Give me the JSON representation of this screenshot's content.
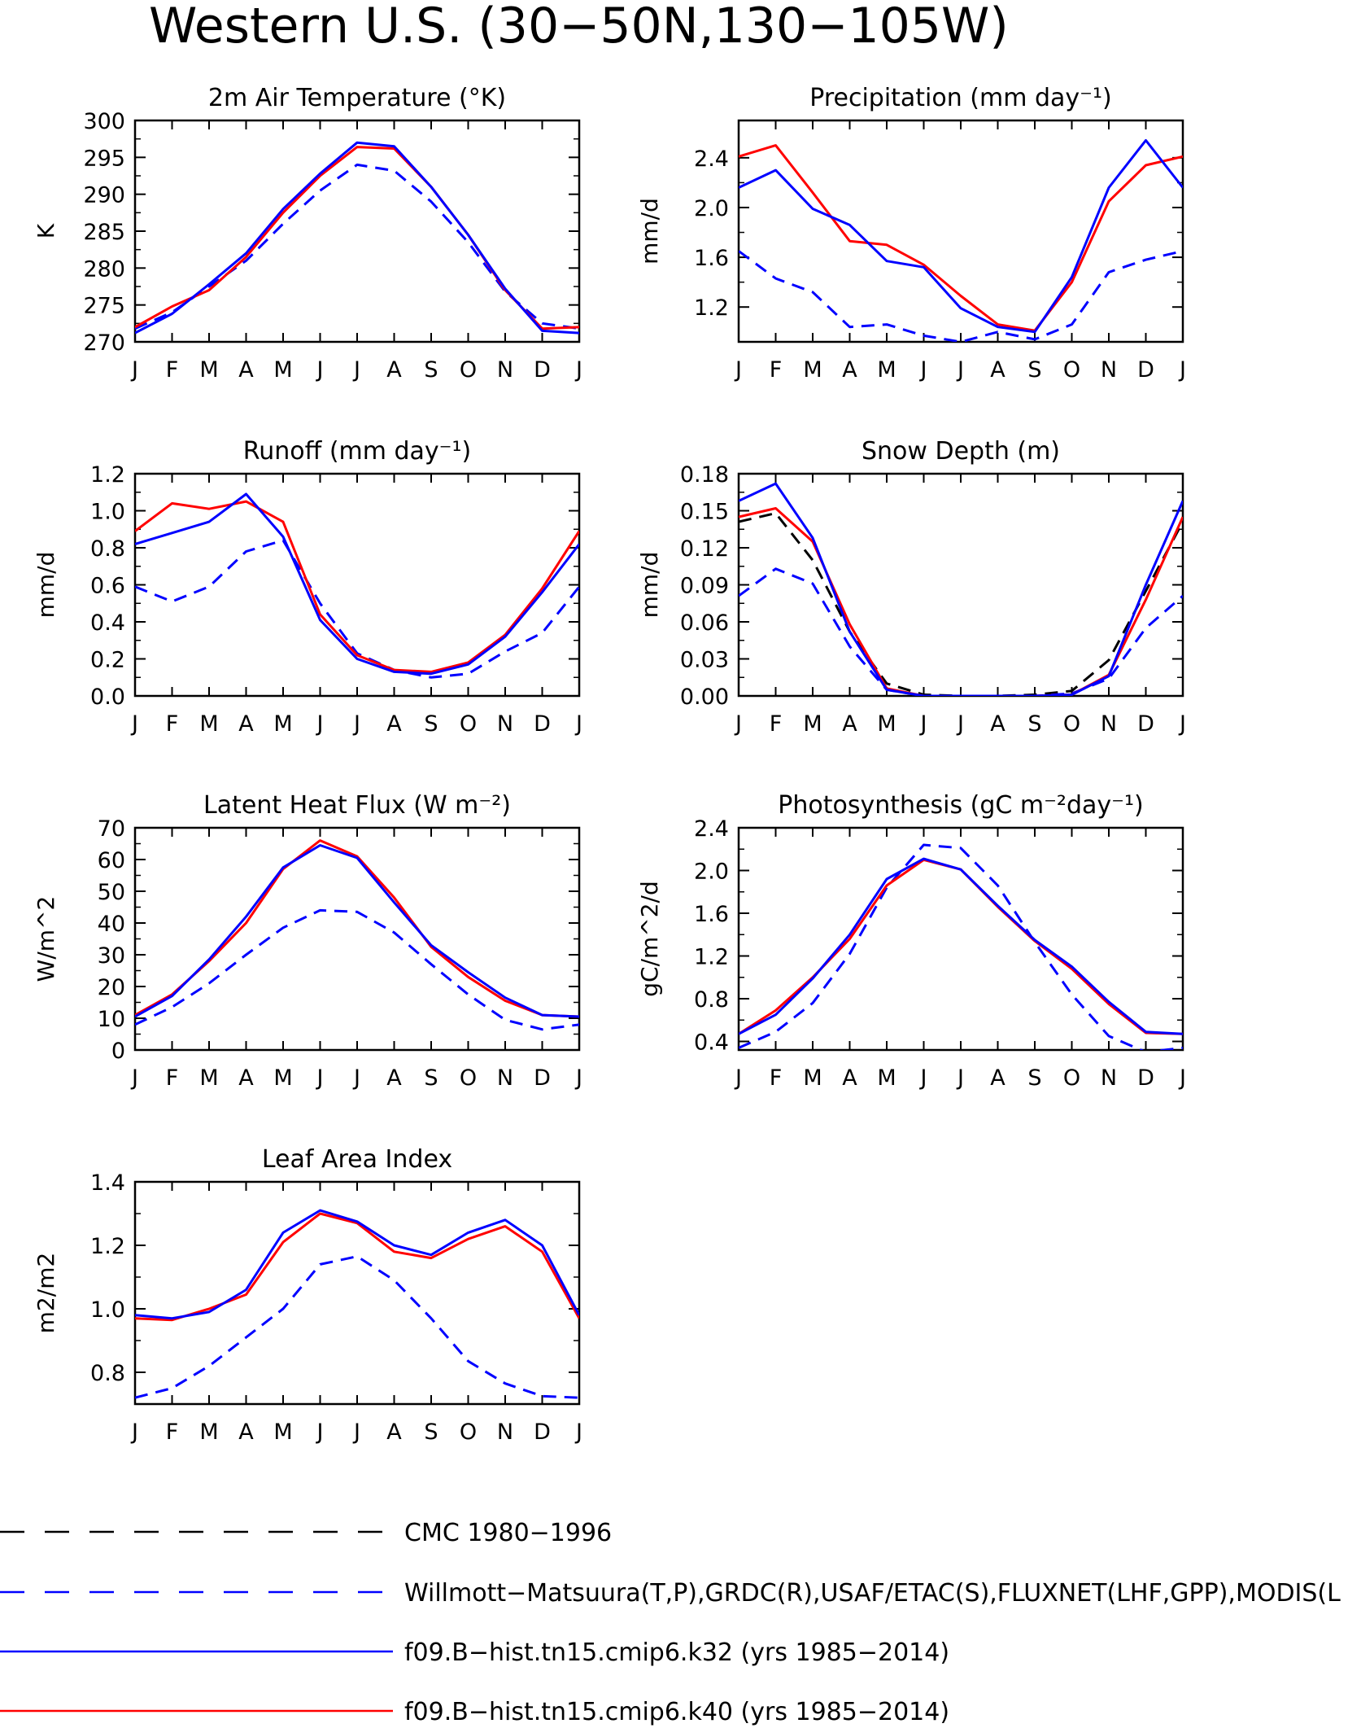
{
  "figure": {
    "title": "Western U.S. (30−50N,130−105W)"
  },
  "colors": {
    "cmc": "#000000",
    "obs": "#0000ff",
    "k32": "#0000ff",
    "k40": "#ff0000"
  },
  "legend": [
    {
      "id": "cmc",
      "label": "CMC 1980−1996",
      "color": "#000000",
      "dashed": true
    },
    {
      "id": "obs",
      "label": "Willmott−Matsuura(T,P),GRDC(R),USAF/ETAC(S),FLUXNET(LHF,GPP),MODIS(L",
      "color": "#0000ff",
      "dashed": true
    },
    {
      "id": "k32",
      "label": "f09.B−hist.tn15.cmip6.k32 (yrs 1985−2014)",
      "color": "#0000ff",
      "dashed": false
    },
    {
      "id": "k40",
      "label": "f09.B−hist.tn15.cmip6.k40 (yrs 1985−2014)",
      "color": "#ff0000",
      "dashed": false
    }
  ],
  "chart_data": [
    {
      "id": "tsa",
      "type": "line",
      "title": "2m Air Temperature (°K)",
      "xlabel": "",
      "ylabel": "K",
      "categories": [
        "J",
        "F",
        "M",
        "A",
        "M",
        "J",
        "J",
        "A",
        "S",
        "O",
        "N",
        "D",
        "J"
      ],
      "ylim": [
        270,
        300
      ],
      "yticks": [
        270,
        275,
        280,
        285,
        290,
        295,
        300
      ],
      "yticklabels": [
        "270",
        "275",
        "280",
        "285",
        "290",
        "295",
        "300"
      ],
      "series": [
        {
          "ref": "obs",
          "values": [
            271.8,
            274.0,
            277.5,
            281.0,
            286.0,
            290.5,
            294.0,
            293.2,
            289.0,
            283.5,
            276.8,
            272.5,
            271.8
          ]
        },
        {
          "ref": "k40",
          "values": [
            272.0,
            274.8,
            277.0,
            281.5,
            287.5,
            292.5,
            296.4,
            296.2,
            291.0,
            284.5,
            277.0,
            271.8,
            272.0
          ]
        },
        {
          "ref": "k32",
          "values": [
            271.2,
            273.8,
            277.8,
            282.0,
            288.0,
            292.8,
            297.0,
            296.5,
            291.0,
            284.5,
            277.2,
            271.5,
            271.2
          ]
        }
      ]
    },
    {
      "id": "prec",
      "type": "line",
      "title": "Precipitation (mm day⁻¹)",
      "xlabel": "",
      "ylabel": "mm/d",
      "categories": [
        "J",
        "F",
        "M",
        "A",
        "M",
        "J",
        "J",
        "A",
        "S",
        "O",
        "N",
        "D",
        "J"
      ],
      "ylim": [
        0.92,
        2.7
      ],
      "yticks": [
        1.2,
        1.6,
        2.0,
        2.4
      ],
      "yticklabels": [
        "1.2",
        "1.6",
        "2.0",
        "2.4"
      ],
      "series": [
        {
          "ref": "obs",
          "values": [
            1.65,
            1.43,
            1.32,
            1.04,
            1.06,
            0.97,
            0.92,
            1.0,
            0.94,
            1.06,
            1.48,
            1.58,
            1.65
          ]
        },
        {
          "ref": "k40",
          "values": [
            2.41,
            2.5,
            2.12,
            1.73,
            1.7,
            1.54,
            1.29,
            1.06,
            1.01,
            1.4,
            2.05,
            2.34,
            2.41
          ]
        },
        {
          "ref": "k32",
          "values": [
            2.16,
            2.3,
            1.99,
            1.86,
            1.57,
            1.52,
            1.19,
            1.04,
            1.0,
            1.44,
            2.16,
            2.54,
            2.16
          ]
        }
      ]
    },
    {
      "id": "runoff",
      "type": "line",
      "title": "Runoff (mm day⁻¹)",
      "xlabel": "",
      "ylabel": "mm/d",
      "categories": [
        "J",
        "F",
        "M",
        "A",
        "M",
        "J",
        "J",
        "A",
        "S",
        "O",
        "N",
        "D",
        "J"
      ],
      "ylim": [
        0,
        1.2
      ],
      "yticks": [
        0,
        0.2,
        0.4,
        0.6,
        0.8,
        1.0,
        1.2
      ],
      "yticklabels": [
        "0.0",
        "0.2",
        "0.4",
        "0.6",
        "0.8",
        "1.0",
        "1.2"
      ],
      "series": [
        {
          "ref": "obs",
          "values": [
            0.59,
            0.51,
            0.59,
            0.78,
            0.84,
            0.5,
            0.23,
            0.14,
            0.1,
            0.12,
            0.24,
            0.34,
            0.59
          ]
        },
        {
          "ref": "k40",
          "values": [
            0.89,
            1.04,
            1.01,
            1.05,
            0.94,
            0.44,
            0.22,
            0.14,
            0.13,
            0.18,
            0.33,
            0.58,
            0.89
          ]
        },
        {
          "ref": "k32",
          "values": [
            0.82,
            0.88,
            0.94,
            1.09,
            0.86,
            0.41,
            0.2,
            0.13,
            0.12,
            0.17,
            0.32,
            0.56,
            0.82
          ]
        }
      ]
    },
    {
      "id": "snowdp",
      "type": "line",
      "title": "Snow Depth (m)",
      "xlabel": "",
      "ylabel": "mm/d",
      "categories": [
        "J",
        "F",
        "M",
        "A",
        "M",
        "J",
        "J",
        "A",
        "S",
        "O",
        "N",
        "D",
        "J"
      ],
      "ylim": [
        0,
        0.18
      ],
      "yticks": [
        0,
        0.03,
        0.06,
        0.09,
        0.12,
        0.15,
        0.18
      ],
      "yticklabels": [
        "0.00",
        "0.03",
        "0.06",
        "0.09",
        "0.12",
        "0.15",
        "0.18"
      ],
      "series": [
        {
          "ref": "cmc",
          "values": [
            0.141,
            0.148,
            0.11,
            0.052,
            0.01,
            0.001,
            0.0,
            0.0,
            0.001,
            0.004,
            0.029,
            0.085,
            0.141
          ]
        },
        {
          "ref": "obs",
          "values": [
            0.081,
            0.103,
            0.091,
            0.04,
            0.005,
            0.0,
            0.0,
            0.0,
            0.0,
            0.002,
            0.014,
            0.055,
            0.081
          ]
        },
        {
          "ref": "k40",
          "values": [
            0.145,
            0.152,
            0.125,
            0.058,
            0.006,
            0.0,
            0.0,
            0.0,
            0.0,
            0.001,
            0.017,
            0.078,
            0.145
          ]
        },
        {
          "ref": "k32",
          "values": [
            0.158,
            0.172,
            0.128,
            0.052,
            0.005,
            0.0,
            0.0,
            0.0,
            0.0,
            0.001,
            0.016,
            0.09,
            0.158
          ]
        }
      ]
    },
    {
      "id": "lhf",
      "type": "line",
      "title": "Latent Heat Flux (W m⁻²)",
      "xlabel": "",
      "ylabel": "W/m^2",
      "categories": [
        "J",
        "F",
        "M",
        "A",
        "M",
        "J",
        "J",
        "A",
        "S",
        "O",
        "N",
        "D",
        "J"
      ],
      "ylim": [
        0,
        70
      ],
      "yticks": [
        0,
        10,
        20,
        30,
        40,
        50,
        60,
        70
      ],
      "yticklabels": [
        "0",
        "10",
        "20",
        "30",
        "40",
        "50",
        "60",
        "70"
      ],
      "series": [
        {
          "ref": "obs",
          "values": [
            8,
            13.5,
            21,
            30,
            38.5,
            44,
            43.5,
            37,
            27,
            17.5,
            9.5,
            6.5,
            8
          ]
        },
        {
          "ref": "k40",
          "values": [
            11,
            17.5,
            28,
            40,
            57,
            66,
            61,
            48,
            32.5,
            23,
            15.5,
            11,
            10.5
          ]
        },
        {
          "ref": "k32",
          "values": [
            10.5,
            17,
            28.5,
            42,
            57.5,
            64.5,
            60.5,
            46.5,
            33,
            24.5,
            16.5,
            11,
            10.5
          ]
        }
      ]
    },
    {
      "id": "gpp",
      "type": "line",
      "title": "Photosynthesis (gC m⁻²day⁻¹)",
      "xlabel": "",
      "ylabel": "gC/m^2/d",
      "categories": [
        "J",
        "F",
        "M",
        "A",
        "M",
        "J",
        "J",
        "A",
        "S",
        "O",
        "N",
        "D",
        "J"
      ],
      "ylim": [
        0.32,
        2.4
      ],
      "yticks": [
        0.4,
        0.8,
        1.2,
        1.6,
        2.0,
        2.4
      ],
      "yticklabels": [
        "0.4",
        "0.8",
        "1.2",
        "1.6",
        "2.0",
        "2.4"
      ],
      "series": [
        {
          "ref": "obs",
          "values": [
            0.34,
            0.49,
            0.76,
            1.22,
            1.84,
            2.24,
            2.21,
            1.86,
            1.33,
            0.84,
            0.45,
            0.3,
            0.34
          ]
        },
        {
          "ref": "k40",
          "values": [
            0.47,
            0.69,
            1.0,
            1.36,
            1.86,
            2.1,
            2.01,
            1.66,
            1.34,
            1.08,
            0.75,
            0.48,
            0.47
          ]
        },
        {
          "ref": "k32",
          "values": [
            0.47,
            0.65,
            0.99,
            1.4,
            1.92,
            2.11,
            2.01,
            1.67,
            1.35,
            1.1,
            0.77,
            0.49,
            0.47
          ]
        }
      ]
    },
    {
      "id": "lai",
      "type": "line",
      "title": "Leaf Area Index",
      "xlabel": "",
      "ylabel": "m2/m2",
      "categories": [
        "J",
        "F",
        "M",
        "A",
        "M",
        "J",
        "J",
        "A",
        "S",
        "O",
        "N",
        "D",
        "J"
      ],
      "ylim": [
        0.7,
        1.4
      ],
      "yticks": [
        0.8,
        1.0,
        1.2,
        1.4
      ],
      "yticklabels": [
        "0.8",
        "1.0",
        "1.2",
        "1.4"
      ],
      "series": [
        {
          "ref": "obs",
          "values": [
            0.72,
            0.75,
            0.82,
            0.91,
            1.0,
            1.14,
            1.165,
            1.09,
            0.97,
            0.835,
            0.765,
            0.725,
            0.72
          ]
        },
        {
          "ref": "k40",
          "values": [
            0.97,
            0.965,
            1.0,
            1.045,
            1.21,
            1.3,
            1.27,
            1.18,
            1.16,
            1.22,
            1.26,
            1.18,
            0.97
          ]
        },
        {
          "ref": "k32",
          "values": [
            0.98,
            0.97,
            0.99,
            1.06,
            1.24,
            1.31,
            1.275,
            1.2,
            1.17,
            1.24,
            1.28,
            1.2,
            0.98
          ]
        }
      ]
    }
  ]
}
